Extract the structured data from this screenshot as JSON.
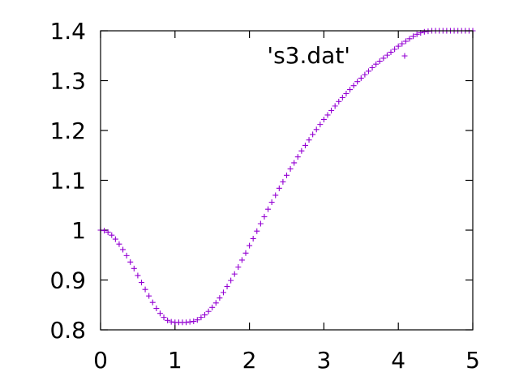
{
  "chart_data": {
    "type": "scatter",
    "title": "",
    "xlabel": "",
    "ylabel": "",
    "xlim": [
      0,
      5
    ],
    "ylim": [
      0.8,
      1.4
    ],
    "xticks": [
      "0",
      "1",
      "2",
      "3",
      "4",
      "5"
    ],
    "yticks": [
      "0.8",
      "0.9",
      "1",
      "1.1",
      "1.2",
      "1.3",
      "1.4"
    ],
    "grid": false,
    "legend_position": "top-right",
    "marker": "plus",
    "series": [
      {
        "name": "'s3.dat'",
        "color": "#9400d3",
        "x": [
          0.0,
          0.05,
          0.1,
          0.15,
          0.2,
          0.25,
          0.3,
          0.35,
          0.4,
          0.45,
          0.5,
          0.55,
          0.6,
          0.65,
          0.7,
          0.75,
          0.8,
          0.85,
          0.9,
          0.95,
          1.0,
          1.05,
          1.1,
          1.15,
          1.2,
          1.25,
          1.3,
          1.35,
          1.4,
          1.45,
          1.5,
          1.55,
          1.6,
          1.65,
          1.7,
          1.75,
          1.8,
          1.85,
          1.9,
          1.95,
          2.0,
          2.05,
          2.1,
          2.15,
          2.2,
          2.25,
          2.3,
          2.35,
          2.4,
          2.45,
          2.5,
          2.55,
          2.6,
          2.65,
          2.7,
          2.75,
          2.8,
          2.85,
          2.9,
          2.95,
          3.0,
          3.05,
          3.1,
          3.15,
          3.2,
          3.25,
          3.3,
          3.35,
          3.4,
          3.45,
          3.5,
          3.55,
          3.6,
          3.65,
          3.7,
          3.75,
          3.8,
          3.85,
          3.9,
          3.95,
          4.0,
          4.05,
          4.1,
          4.15,
          4.2,
          4.25,
          4.3,
          4.35,
          4.4,
          4.45,
          4.5,
          4.55,
          4.6,
          4.65,
          4.7,
          4.75,
          4.8,
          4.85,
          4.9,
          4.95,
          5.0
        ],
        "y": [
          1.0,
          0.999,
          0.996,
          0.99,
          0.982,
          0.972,
          0.961,
          0.949,
          0.936,
          0.923,
          0.909,
          0.895,
          0.881,
          0.868,
          0.855,
          0.843,
          0.833,
          0.825,
          0.819,
          0.816,
          0.815,
          0.815,
          0.815,
          0.815,
          0.816,
          0.817,
          0.82,
          0.825,
          0.83,
          0.837,
          0.845,
          0.854,
          0.864,
          0.875,
          0.887,
          0.899,
          0.912,
          0.926,
          0.94,
          0.954,
          0.969,
          0.983,
          0.998,
          1.013,
          1.027,
          1.042,
          1.056,
          1.07,
          1.084,
          1.097,
          1.11,
          1.123,
          1.135,
          1.147,
          1.159,
          1.17,
          1.181,
          1.192,
          1.202,
          1.212,
          1.222,
          1.231,
          1.24,
          1.249,
          1.258,
          1.266,
          1.274,
          1.282,
          1.29,
          1.298,
          1.305,
          1.312,
          1.319,
          1.326,
          1.333,
          1.339,
          1.345,
          1.351,
          1.357,
          1.363,
          1.369,
          1.374,
          1.379,
          1.384,
          1.389,
          1.393,
          1.396,
          1.398,
          1.399,
          1.4,
          1.4,
          1.4,
          1.4,
          1.4,
          1.4,
          1.4,
          1.4,
          1.4,
          1.4,
          1.4,
          1.4
        ]
      }
    ]
  }
}
